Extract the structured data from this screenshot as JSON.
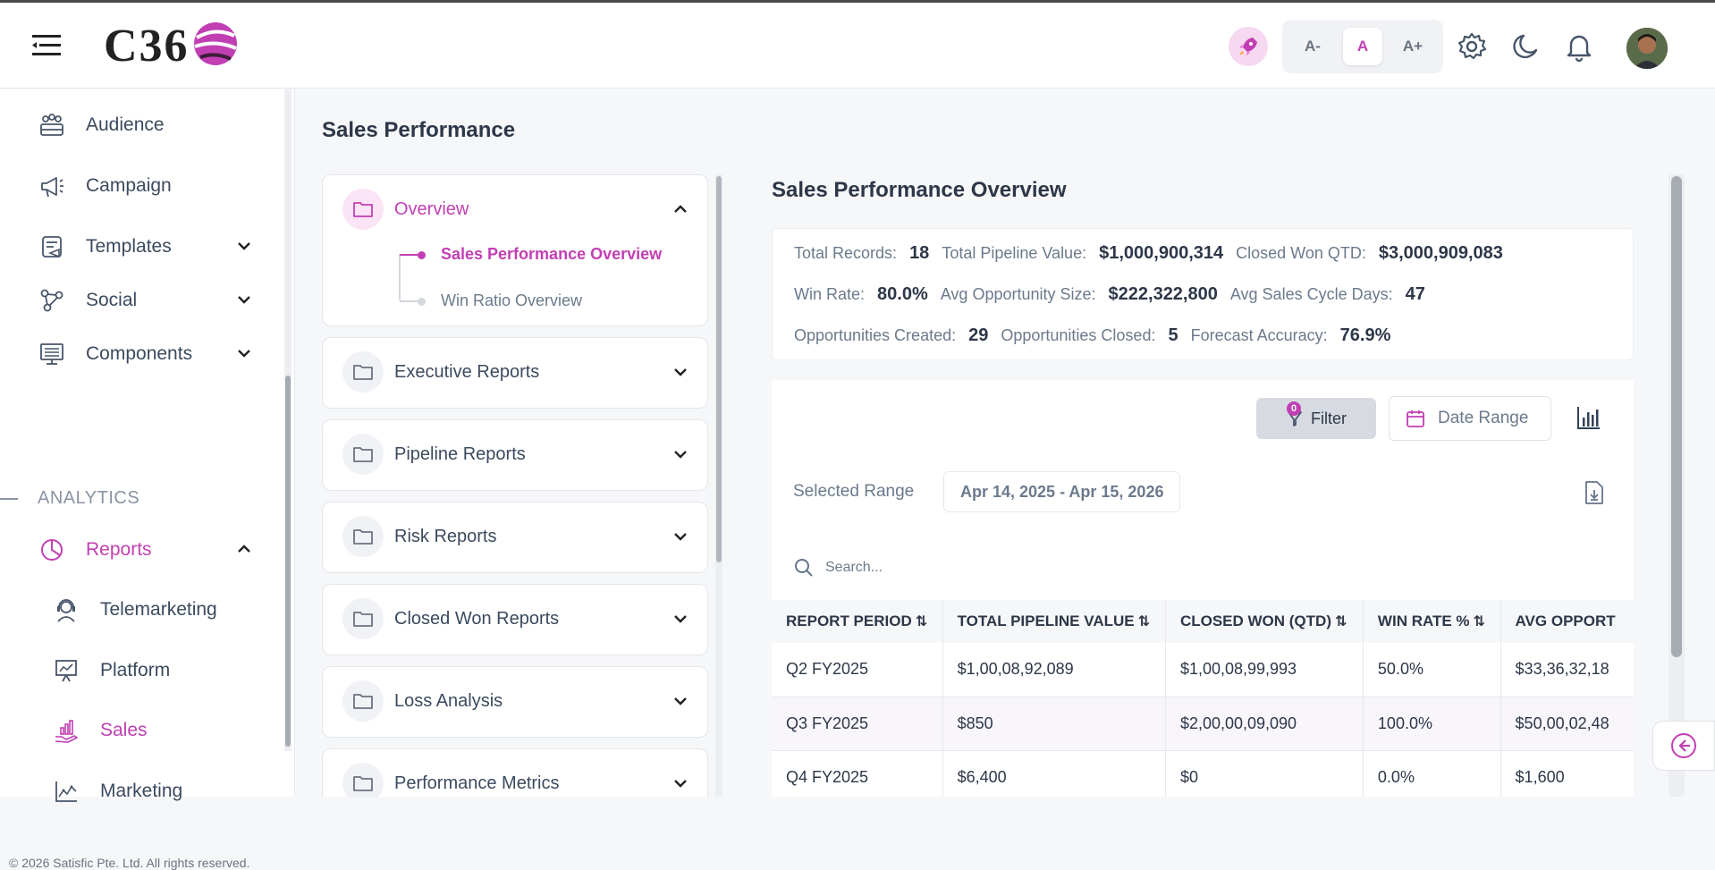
{
  "header": {
    "logo_text": "C36",
    "font_buttons": [
      "A-",
      "A",
      "A+"
    ],
    "accent": "#c23fb3"
  },
  "sidebar": {
    "items": [
      {
        "label": "Audience",
        "icon": "audience-icon"
      },
      {
        "label": "Campaign",
        "icon": "megaphone-icon"
      },
      {
        "label": "Templates",
        "icon": "templates-icon"
      },
      {
        "label": "Social",
        "icon": "social-icon"
      },
      {
        "label": "Components",
        "icon": "components-icon"
      }
    ],
    "section_label": "ANALYTICS",
    "reports_label": "Reports",
    "sub_items": [
      {
        "label": "Telemarketing",
        "icon": "headset-icon"
      },
      {
        "label": "Platform",
        "icon": "presentation-icon"
      },
      {
        "label": "Sales",
        "icon": "sales-icon"
      },
      {
        "label": "Marketing",
        "icon": "line-chart-icon"
      }
    ],
    "copyright": "© 2026 Satisfic Pte. Ltd. All rights reserved."
  },
  "page": {
    "title": "Sales Performance"
  },
  "accordion": {
    "overview": {
      "label": "Overview",
      "children": [
        "Sales Performance Overview",
        "Win Ratio Overview"
      ]
    },
    "sections": [
      "Executive Reports",
      "Pipeline Reports",
      "Risk Reports",
      "Closed Won Reports",
      "Loss Analysis",
      "Performance Metrics"
    ]
  },
  "content": {
    "title": "Sales Performance Overview",
    "stats": {
      "row1": [
        {
          "k": "Total Records:",
          "v": "18"
        },
        {
          "k": "Total Pipeline Value:",
          "v": "$1,000,900,314"
        },
        {
          "k": "Closed Won QTD:",
          "v": "$3,000,909,083"
        }
      ],
      "row2": [
        {
          "k": "Win Rate:",
          "v": "80.0%"
        },
        {
          "k": "Avg Opportunity Size:",
          "v": "$222,322,800"
        },
        {
          "k": "Avg Sales Cycle Days:",
          "v": "47"
        }
      ],
      "row3": [
        {
          "k": "Opportunities Created:",
          "v": "29"
        },
        {
          "k": "Opportunities Closed:",
          "v": "5"
        },
        {
          "k": "Forecast Accuracy:",
          "v": "76.9%"
        }
      ]
    },
    "toolbar": {
      "filter_label": "Filter",
      "filter_count": "0",
      "date_range_label": "Date Range"
    },
    "selected_range_label": "Selected Range",
    "selected_range_value": "Apr 14, 2025 - Apr 15, 2026",
    "search_placeholder": "Search...",
    "table": {
      "headers": [
        "REPORT PERIOD",
        "TOTAL PIPELINE VALUE",
        "CLOSED WON (QTD)",
        "WIN RATE %",
        "AVG OPPORT"
      ],
      "rows": [
        [
          "Q2 FY2025",
          "$1,00,08,92,089",
          "$1,00,08,99,993",
          "50.0%",
          "$33,36,32,18"
        ],
        [
          "Q3 FY2025",
          "$850",
          "$2,00,00,09,090",
          "100.0%",
          "$50,00,02,48"
        ],
        [
          "Q4 FY2025",
          "$6,400",
          "$0",
          "0.0%",
          "$1,600"
        ]
      ]
    }
  }
}
